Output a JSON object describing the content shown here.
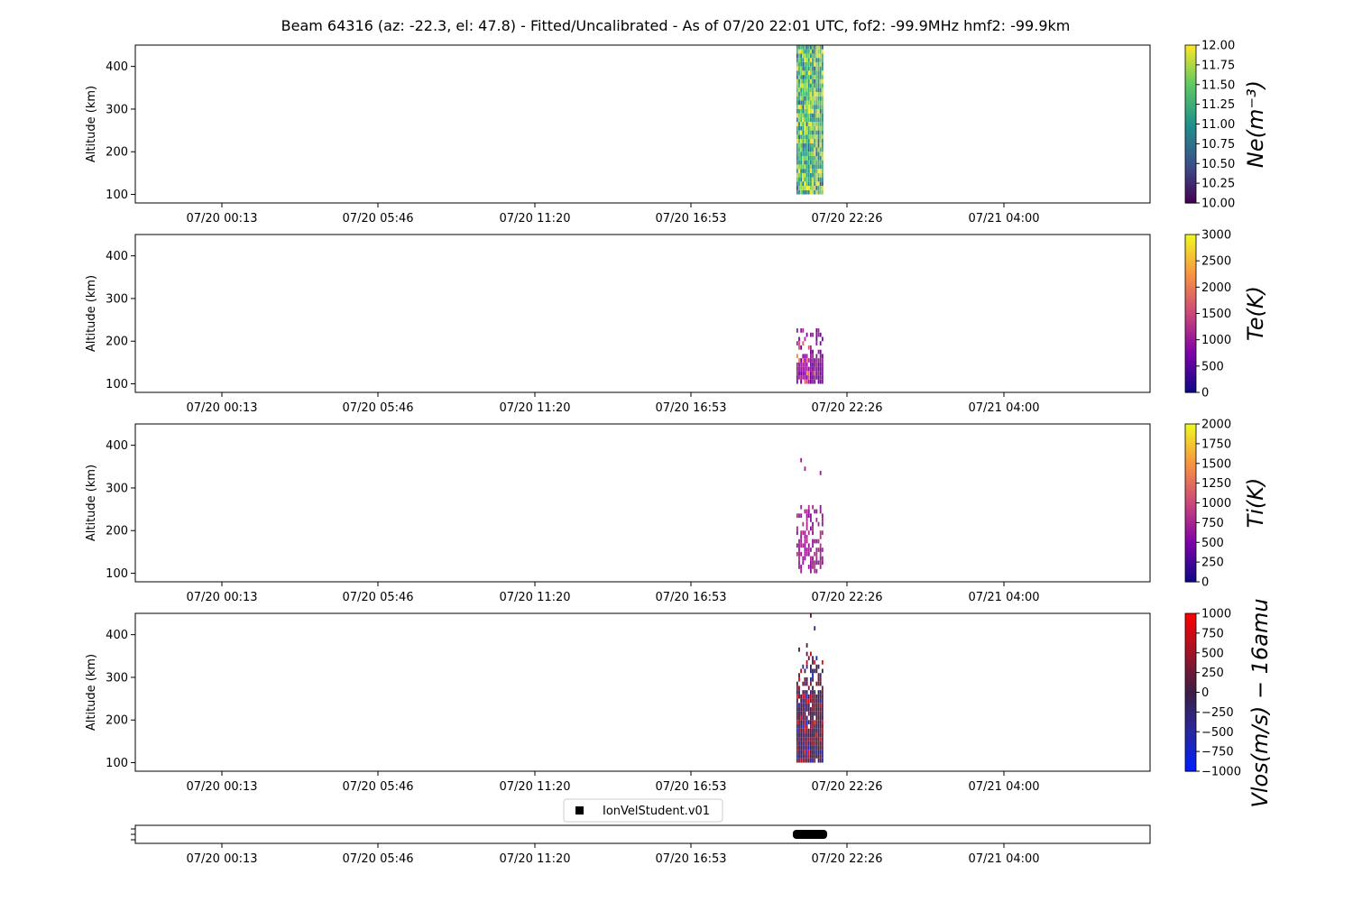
{
  "title": "Beam 64316 (az: -22.3, el: 47.8) - Fitted/Uncalibrated - As of 07/20 22:01 UTC, fof2: -99.9MHz  hmf2: -99.9km",
  "x_ticks": [
    "07/20 00:13",
    "07/20 05:46",
    "07/20 11:20",
    "07/20 16:53",
    "07/20 22:26",
    "07/21 04:00"
  ],
  "legend": {
    "label": "IonVelStudent.v01"
  },
  "chart_data": [
    {
      "type": "heatmap",
      "name": "ne",
      "ylabel": "Altitude (km)",
      "y_ticks": [
        100,
        200,
        300,
        400
      ],
      "ylim": [
        80,
        450
      ],
      "x_data_range": [
        "07/20 20:39",
        "07/20 21:37"
      ],
      "alt_range": [
        100,
        450
      ],
      "colorbar": {
        "label": "Ne(m⁻³)",
        "cmap": "viridis",
        "range": [
          10.0,
          12.0
        ],
        "ticks": [
          "10.00",
          "10.25",
          "10.50",
          "10.75",
          "11.00",
          "11.25",
          "11.50",
          "11.75",
          "12.00"
        ]
      }
    },
    {
      "type": "heatmap",
      "name": "te",
      "ylabel": "Altitude (km)",
      "y_ticks": [
        100,
        200,
        300,
        400
      ],
      "ylim": [
        80,
        450
      ],
      "x_data_range": [
        "07/20 20:39",
        "07/20 21:37"
      ],
      "alt_range": [
        100,
        240
      ],
      "colorbar": {
        "label": "Te(K)",
        "cmap": "plasma",
        "range": [
          0,
          3000
        ],
        "ticks": [
          "0",
          "500",
          "1000",
          "1500",
          "2000",
          "2500",
          "3000"
        ]
      }
    },
    {
      "type": "heatmap",
      "name": "ti",
      "ylabel": "Altitude (km)",
      "y_ticks": [
        100,
        200,
        300,
        400
      ],
      "ylim": [
        80,
        450
      ],
      "x_data_range": [
        "07/20 20:39",
        "07/20 21:37"
      ],
      "alt_range": [
        100,
        370
      ],
      "colorbar": {
        "label": "Ti(K)",
        "cmap": "plasma",
        "range": [
          0,
          2000
        ],
        "ticks": [
          "0",
          "250",
          "500",
          "750",
          "1000",
          "1250",
          "1500",
          "1750",
          "2000"
        ]
      }
    },
    {
      "type": "heatmap",
      "name": "vlos",
      "ylabel": "Altitude (km)",
      "y_ticks": [
        100,
        200,
        300,
        400
      ],
      "ylim": [
        80,
        450
      ],
      "x_data_range": [
        "07/20 20:39",
        "07/20 21:37"
      ],
      "alt_range": [
        100,
        450
      ],
      "colorbar": {
        "label": "Vlos(m/s) − 16amu",
        "cmap": "bwr-dark",
        "range": [
          -1000,
          1000
        ],
        "ticks": [
          "−1000",
          "−750",
          "−500",
          "−250",
          "0",
          "250",
          "500",
          "750",
          "1000"
        ]
      }
    },
    {
      "type": "scatter",
      "name": "dataset-timeline",
      "series": [
        {
          "name": "IonVelStudent.v01",
          "x_range": [
            "07/20 20:39",
            "07/20 21:37"
          ]
        }
      ]
    }
  ],
  "colors": {
    "legend_marker": "#000000"
  }
}
